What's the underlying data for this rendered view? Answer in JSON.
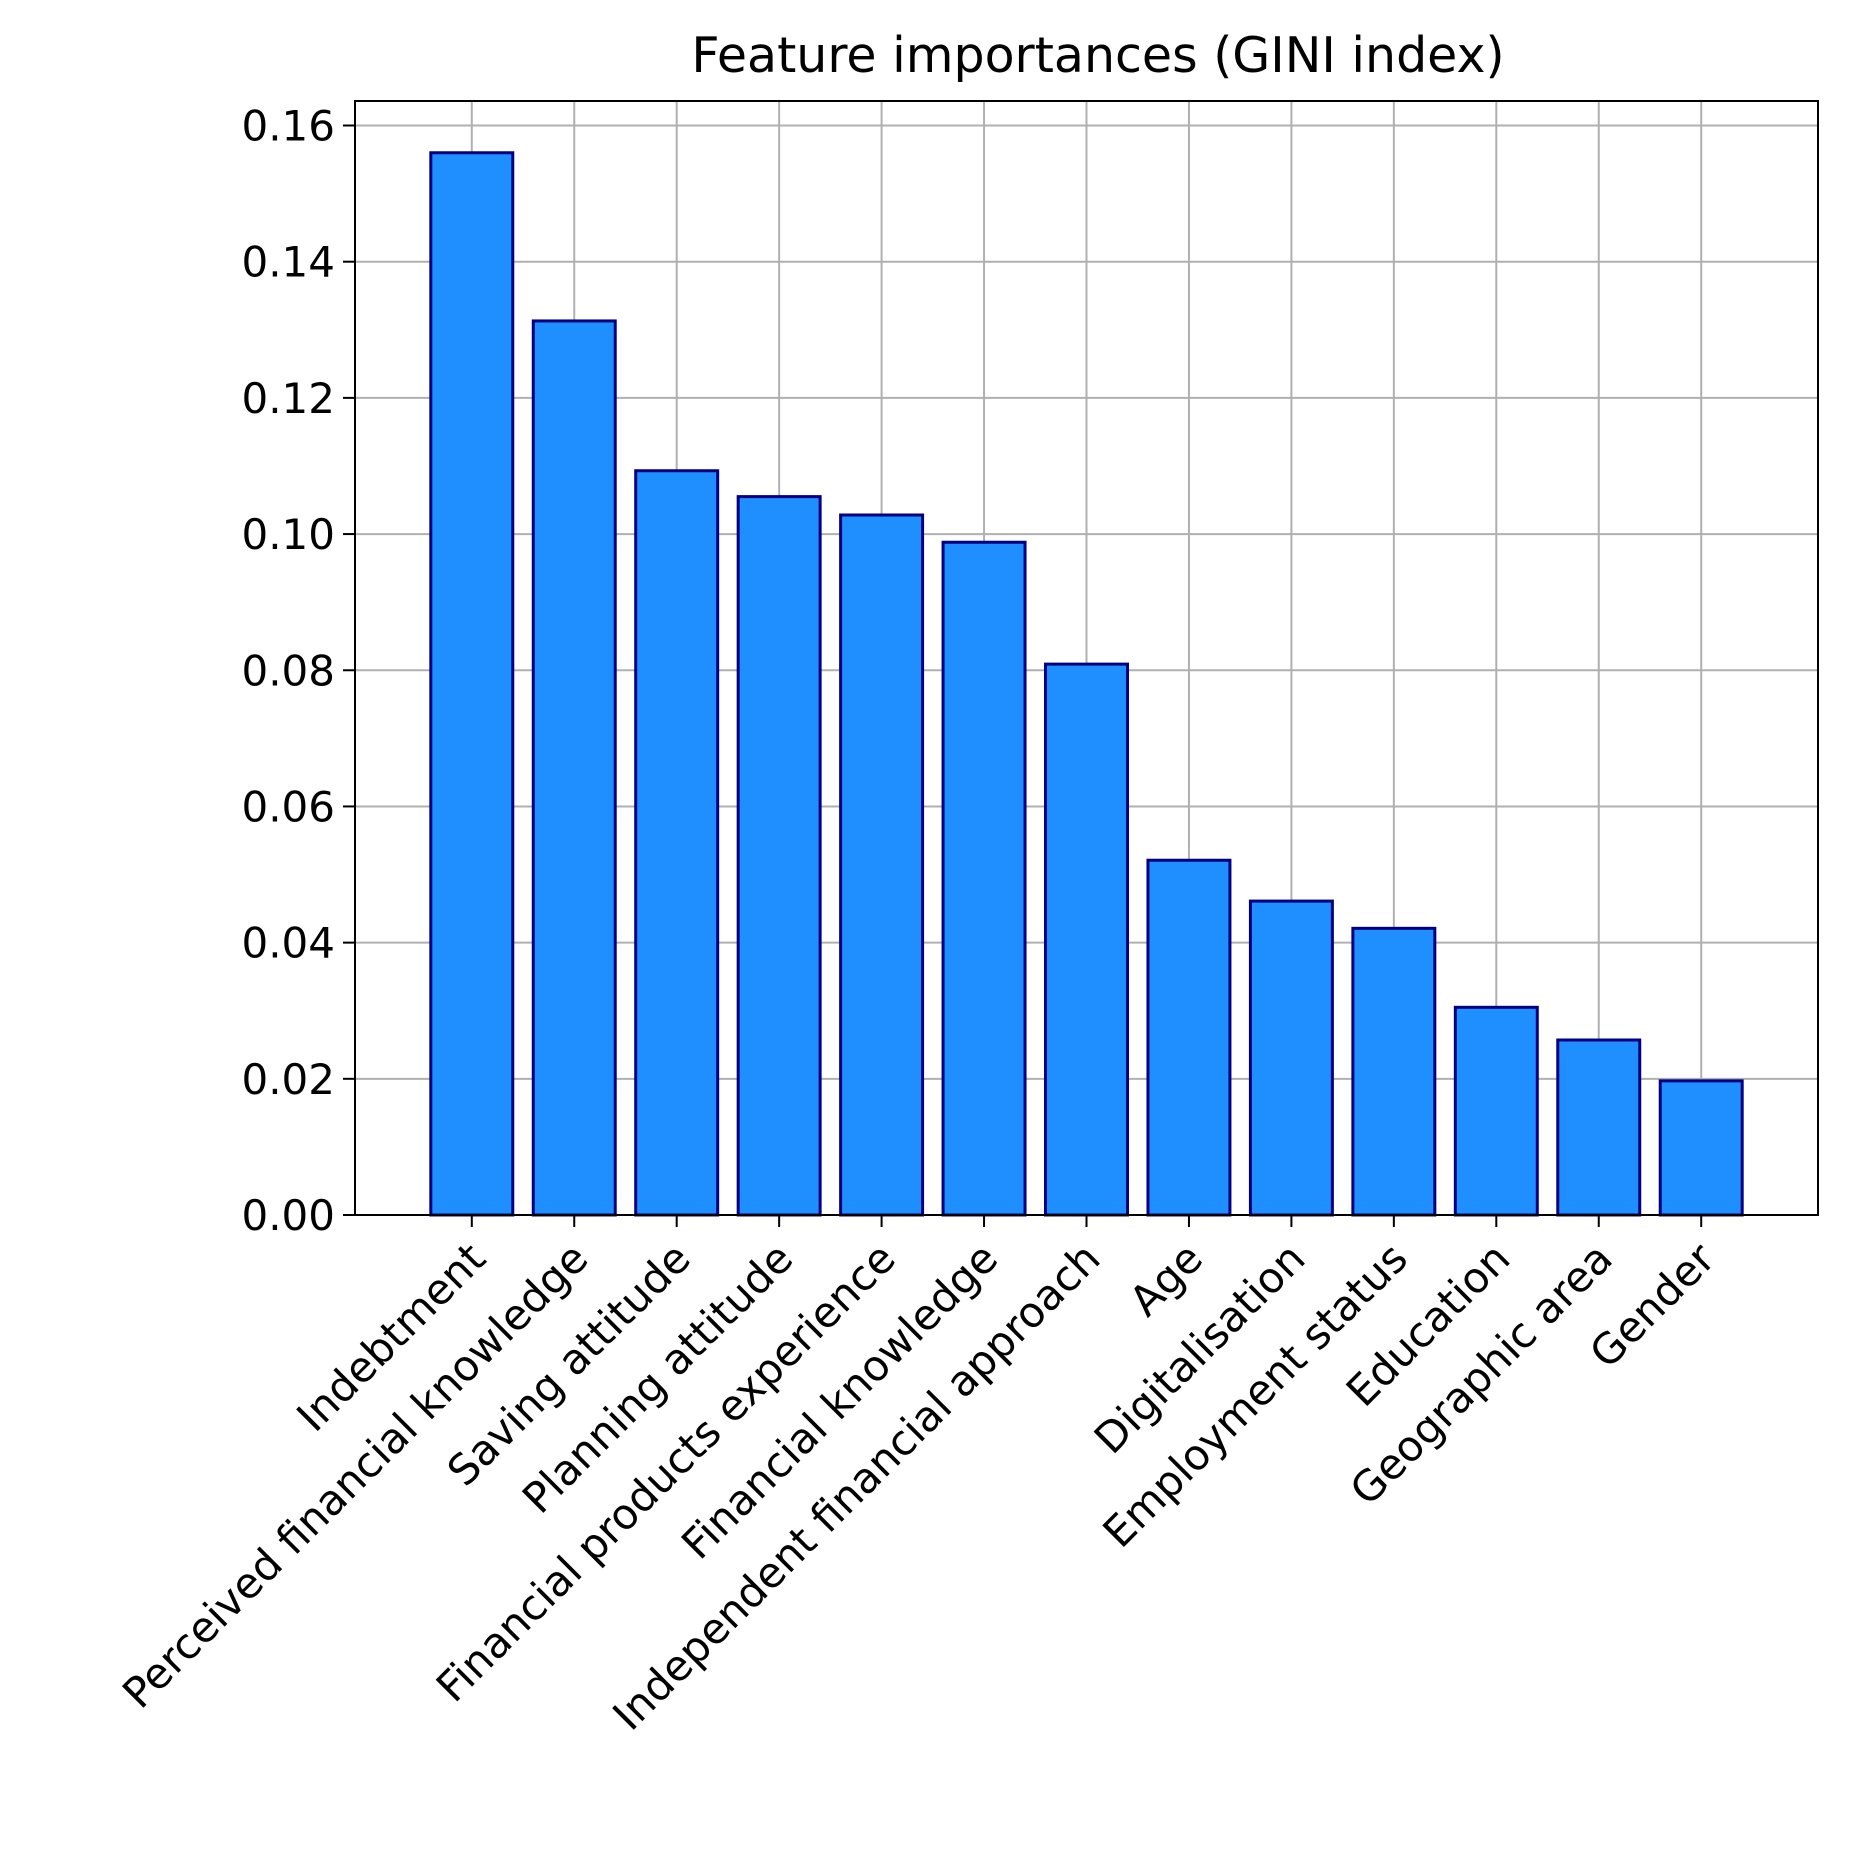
{
  "chart_data": {
    "type": "bar",
    "title": "Feature importances (GINI index)",
    "xlabel": "",
    "ylabel": "",
    "categories": [
      "Indebtment",
      "Perceived financial knowledge",
      "Saving attitude",
      "Planning attitude",
      "Financial products experience",
      "Financial knowledge",
      "Independent financial approach",
      "Age",
      "Digitalisation",
      "Employment status",
      "Education",
      "Geographic area",
      "Gender"
    ],
    "values": [
      0.156,
      0.1313,
      0.1093,
      0.1055,
      0.1028,
      0.0988,
      0.0809,
      0.0521,
      0.0461,
      0.0421,
      0.0305,
      0.0257,
      0.0197
    ],
    "ylim": [
      0,
      0.1636
    ],
    "yticks": [
      "0.00",
      "0.02",
      "0.04",
      "0.06",
      "0.08",
      "0.10",
      "0.12",
      "0.14",
      "0.16"
    ],
    "grid": true,
    "colors": {
      "bar_fill": "#1f8fff",
      "bar_edge": "#000080",
      "grid": "#b0b0b0",
      "axis": "#000000"
    }
  }
}
